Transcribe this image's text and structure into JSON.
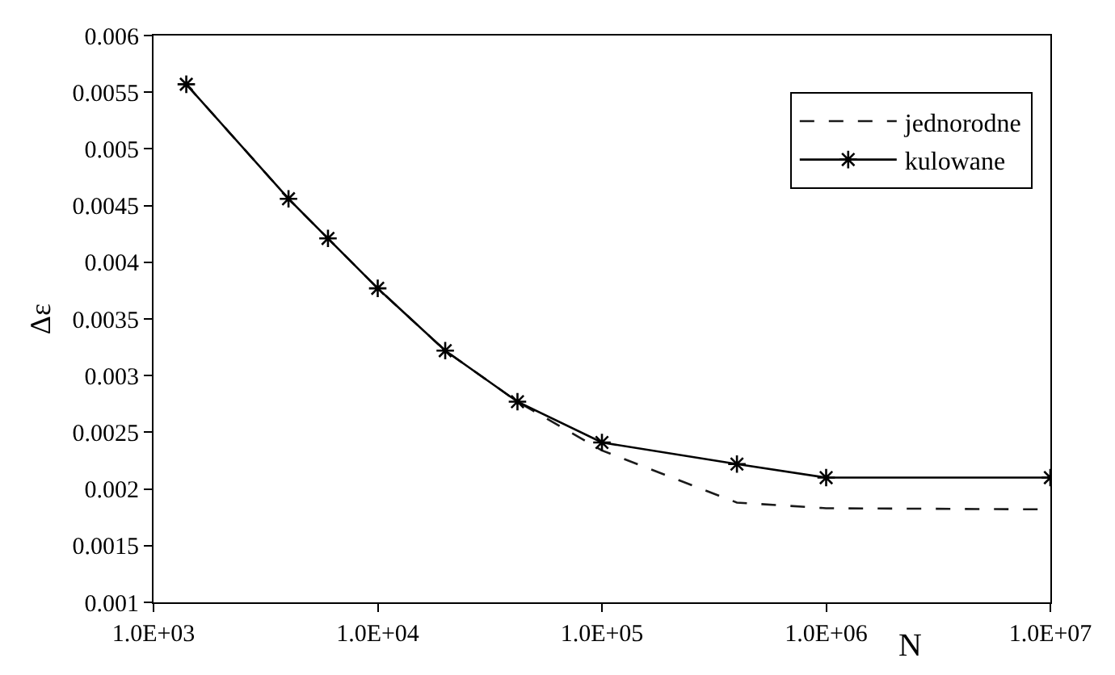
{
  "chart_data": {
    "type": "line",
    "xlabel": "N",
    "ylabel": "Δε",
    "log": "x",
    "grid": false,
    "legend": "top right",
    "xlim": [
      1000,
      10000000
    ],
    "xticks": [
      {
        "value": 1000,
        "label": "1.0E+03"
      },
      {
        "value": 10000,
        "label": "1.0E+04"
      },
      {
        "value": 100000,
        "label": "1.0E+05"
      },
      {
        "value": 1000000,
        "label": "1.0E+06"
      },
      {
        "value": 10000000,
        "label": "1.0E+07"
      }
    ],
    "ylim": [
      0.001,
      0.006
    ],
    "yticks": [
      0.001,
      0.0015,
      0.002,
      0.0025,
      0.003,
      0.0035,
      0.004,
      0.0045,
      0.005,
      0.0055,
      0.006
    ],
    "series": [
      {
        "name": "jednorodne",
        "color": "#1a1a1a",
        "line_style": "dashed",
        "marker": "none",
        "x": [
          1400,
          4000,
          6000,
          10000,
          20000,
          42000,
          100000,
          400000,
          1000000,
          10000000
        ],
        "values": [
          0.00557,
          0.00456,
          0.00421,
          0.00377,
          0.00322,
          0.00277,
          0.00234,
          0.00188,
          0.00183,
          0.00182
        ]
      },
      {
        "name": "kulowane",
        "color": "#000000",
        "line_style": "solid",
        "marker": "cross",
        "x": [
          1400,
          4000,
          6000,
          10000,
          20000,
          42000,
          100000,
          400000,
          1000000,
          10000000
        ],
        "values": [
          0.00557,
          0.00456,
          0.00421,
          0.00377,
          0.00322,
          0.00277,
          0.00241,
          0.00222,
          0.0021,
          0.0021
        ]
      }
    ]
  }
}
